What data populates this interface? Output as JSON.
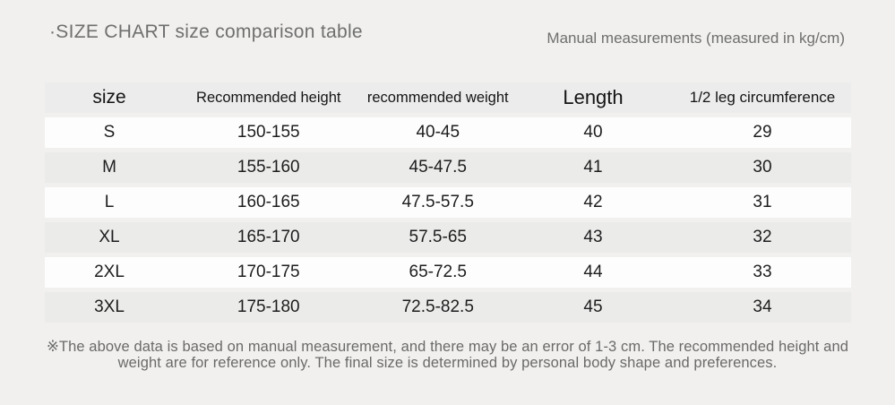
{
  "header": {
    "title": "·SIZE CHART size comparison table",
    "subtitle": "Manual measurements (measured in kg/cm)"
  },
  "chart_data": {
    "type": "table",
    "title": "SIZE CHART size comparison table",
    "columns": [
      "size",
      "Recommended height",
      "recommended weight",
      "Length",
      "1/2 leg circumference"
    ],
    "rows": [
      [
        "S",
        "150-155",
        "40-45",
        "40",
        "29"
      ],
      [
        "M",
        "155-160",
        "45-47.5",
        "41",
        "30"
      ],
      [
        "L",
        "160-165",
        "47.5-57.5",
        "42",
        "31"
      ],
      [
        "XL",
        "165-170",
        "57.5-65",
        "43",
        "32"
      ],
      [
        "2XL",
        "170-175",
        "65-72.5",
        "44",
        "33"
      ],
      [
        "3XL",
        "175-180",
        "72.5-82.5",
        "45",
        "34"
      ]
    ],
    "units": "kg/cm"
  },
  "footnote": {
    "text": "※The above data is based on manual measurement, and there may be an error of 1-3 cm. The recommended height and weight are for reference only. The final size is determined by personal body shape and preferences."
  },
  "colors": {
    "page_background": "#f1f0ee",
    "header_row_background": "#ececec",
    "row_alt_background": "#ebebea",
    "row_background": "#fdfdfd",
    "table_text": "#1a1a1a",
    "muted_text": "#6f6f6f"
  }
}
